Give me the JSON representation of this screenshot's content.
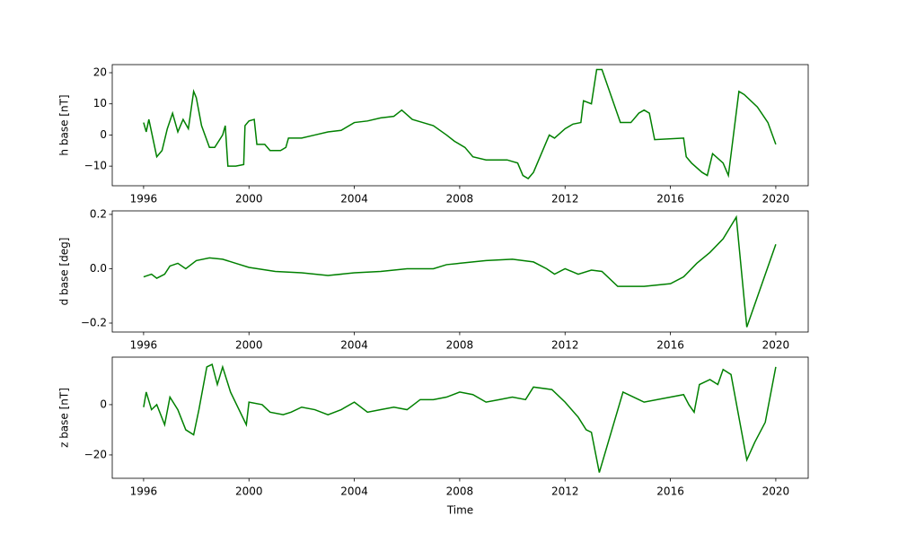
{
  "chart_data": [
    {
      "type": "line",
      "ylabel": "h base [nT]",
      "color": "#008000",
      "xlim": [
        1994.81,
        2021.23
      ],
      "xticks": [
        1996,
        2000,
        2004,
        2008,
        2012,
        2016,
        2020
      ],
      "ylim": [
        -16.3,
        22.6
      ],
      "yticks": [
        {
          "value": -10,
          "label": "−10"
        },
        0,
        10,
        20
      ],
      "x": [
        1996.0,
        1996.1,
        1996.2,
        1996.4,
        1996.5,
        1996.7,
        1996.9,
        1997.1,
        1997.3,
        1997.5,
        1997.7,
        1997.9,
        1998.0,
        1998.2,
        1998.5,
        1998.7,
        1999.0,
        1999.1,
        1999.2,
        1999.5,
        1999.8,
        1999.85,
        2000.0,
        2000.2,
        2000.3,
        2000.6,
        2000.8,
        2001.2,
        2001.4,
        2001.5,
        2002.0,
        2002.5,
        2003.0,
        2003.5,
        2004.0,
        2004.5,
        2005.0,
        2005.5,
        2005.8,
        2006.2,
        2006.6,
        2007.0,
        2007.5,
        2007.8,
        2008.2,
        2008.5,
        2009.0,
        2009.5,
        2009.8,
        2010.0,
        2010.2,
        2010.4,
        2010.6,
        2010.8,
        2011.4,
        2011.6,
        2012.0,
        2012.3,
        2012.6,
        2012.7,
        2013.0,
        2013.2,
        2013.4,
        2014.1,
        2014.5,
        2014.8,
        2015.0,
        2015.2,
        2015.4,
        2016.5,
        2016.6,
        2016.8,
        2017.2,
        2017.4,
        2017.6,
        2018.0,
        2018.2,
        2018.6,
        2018.8,
        2019.3,
        2019.7,
        2020.0
      ],
      "values": [
        4,
        1,
        5,
        -3,
        -7,
        -5,
        2,
        7,
        1,
        5,
        2,
        14,
        12,
        3,
        -4,
        -4,
        0,
        3,
        -10,
        -10,
        -9.5,
        3,
        4.5,
        5,
        -3,
        -3,
        -5,
        -5,
        -4,
        -1,
        -1,
        0,
        1,
        1.5,
        4,
        4.5,
        5.5,
        6,
        8,
        5,
        4,
        3,
        0,
        -2,
        -4,
        -7,
        -8,
        -8,
        -8,
        -8.5,
        -9,
        -13,
        -14,
        -12,
        0,
        -1,
        2,
        3.5,
        4,
        11,
        10,
        21,
        21,
        4,
        4,
        7,
        8,
        7,
        -1.5,
        -1,
        -7,
        -9,
        -12,
        -13,
        -6,
        -9,
        -13,
        14,
        13,
        9,
        4,
        -3
      ]
    },
    {
      "type": "line",
      "ylabel": "d base [deg]",
      "color": "#008000",
      "xlim": [
        1994.81,
        2021.23
      ],
      "xticks": [
        1996,
        2000,
        2004,
        2008,
        2012,
        2016,
        2020
      ],
      "ylim": [
        -0.233,
        0.213
      ],
      "yticks": [
        {
          "value": -0.2,
          "label": "−0.2"
        },
        {
          "value": 0,
          "label": "0.0"
        },
        0.2
      ],
      "x": [
        1996.0,
        1996.3,
        1996.5,
        1996.8,
        1997.0,
        1997.3,
        1997.6,
        1998.0,
        1998.5,
        1999.0,
        1999.5,
        2000.0,
        2001.0,
        2002.0,
        2003.0,
        2004.0,
        2005.0,
        2006.0,
        2007.0,
        2007.5,
        2008.0,
        2008.5,
        2009.0,
        2010.0,
        2010.8,
        2011.3,
        2011.6,
        2012.0,
        2012.5,
        2013.0,
        2013.4,
        2014.0,
        2015.0,
        2016.0,
        2016.5,
        2017.0,
        2017.5,
        2018.0,
        2018.5,
        2018.9,
        2020.0
      ],
      "values": [
        -0.03,
        -0.02,
        -0.035,
        -0.02,
        0.01,
        0.02,
        0.0,
        0.03,
        0.04,
        0.035,
        0.02,
        0.005,
        -0.01,
        -0.015,
        -0.025,
        -0.015,
        -0.01,
        0.0,
        0.0,
        0.015,
        0.02,
        0.025,
        0.03,
        0.035,
        0.025,
        0.0,
        -0.02,
        0.0,
        -0.02,
        -0.005,
        -0.01,
        -0.065,
        -0.065,
        -0.055,
        -0.03,
        0.02,
        0.06,
        0.11,
        0.19,
        -0.215,
        0.09
      ]
    },
    {
      "type": "line",
      "ylabel": "z base [nT]",
      "xlabel": "Time",
      "color": "#008000",
      "xlim": [
        1994.81,
        2021.23
      ],
      "xticks": [
        1996,
        2000,
        2004,
        2008,
        2012,
        2016,
        2020
      ],
      "ylim": [
        -29.3,
        18.9
      ],
      "yticks": [
        {
          "value": -20,
          "label": "−20"
        },
        0
      ],
      "x": [
        1996.0,
        1996.1,
        1996.3,
        1996.5,
        1996.8,
        1997.0,
        1997.3,
        1997.6,
        1997.9,
        1998.1,
        1998.4,
        1998.6,
        1998.8,
        1999.0,
        1999.3,
        1999.9,
        2000.0,
        2000.5,
        2000.8,
        2001.3,
        2001.6,
        2002.0,
        2002.5,
        2003.0,
        2003.5,
        2004.0,
        2004.5,
        2005.0,
        2005.5,
        2006.0,
        2006.5,
        2007.0,
        2007.5,
        2008.0,
        2008.5,
        2009.0,
        2009.5,
        2010.0,
        2010.5,
        2010.8,
        2011.5,
        2012.0,
        2012.5,
        2012.8,
        2013.0,
        2013.3,
        2014.2,
        2014.8,
        2015.0,
        2016.5,
        2016.7,
        2016.9,
        2017.1,
        2017.5,
        2017.8,
        2018.0,
        2018.3,
        2018.9,
        2019.2,
        2019.6,
        2020.0
      ],
      "values": [
        -1,
        5,
        -2,
        0,
        -8,
        3,
        -2,
        -10,
        -12,
        -2,
        15,
        16,
        8,
        15,
        5,
        -8,
        1,
        0,
        -3,
        -4,
        -3,
        -1,
        -2,
        -4,
        -2,
        1,
        -3,
        -2,
        -1,
        -2,
        2,
        2,
        3,
        5,
        4,
        1,
        2,
        3,
        2,
        7,
        6,
        1,
        -5,
        -10,
        -11,
        -27,
        5,
        2,
        1,
        4,
        0,
        -3,
        8,
        10,
        8,
        14,
        12,
        -22,
        -15,
        -7,
        15
      ]
    }
  ]
}
